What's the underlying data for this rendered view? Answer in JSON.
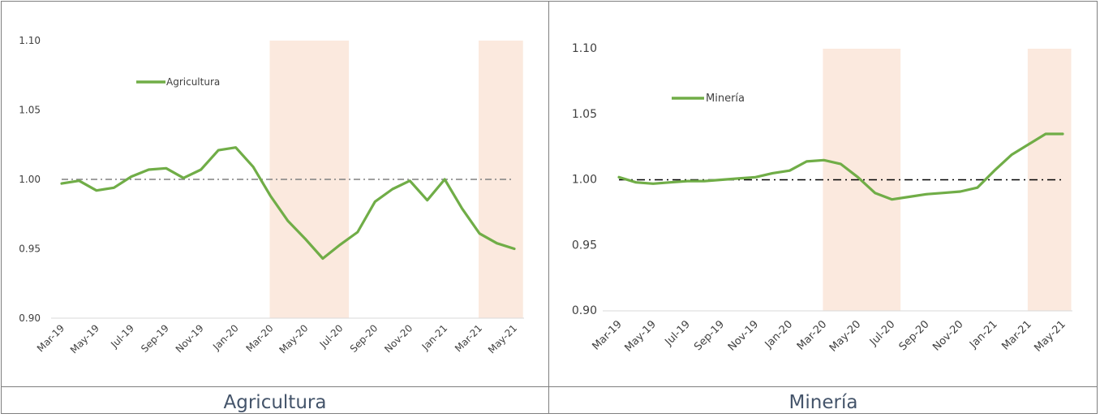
{
  "captions": {
    "left": "Agricultura",
    "right": "Minería"
  },
  "chart_data": [
    {
      "type": "line",
      "x": [
        "Mar-19",
        "Apr-19",
        "May-19",
        "Jun-19",
        "Jul-19",
        "Aug-19",
        "Sep-19",
        "Oct-19",
        "Nov-19",
        "Dec-19",
        "Jan-20",
        "Feb-20",
        "Mar-20",
        "Apr-20",
        "May-20",
        "Jun-20",
        "Jul-20",
        "Aug-20",
        "Sep-20",
        "Oct-20",
        "Nov-20",
        "Dec-20",
        "Jan-21",
        "Feb-21",
        "Mar-21",
        "Apr-21",
        "May-21"
      ],
      "tick_labels": [
        "Mar-19",
        "May-19",
        "Jul-19",
        "Sep-19",
        "Nov-19",
        "Jan-20",
        "Mar-20",
        "May-20",
        "Jul-20",
        "Sep-20",
        "Nov-20",
        "Jan-21",
        "Mar-21",
        "May-21"
      ],
      "series": [
        {
          "name": "Agricultura",
          "color": "#70ad47",
          "values": [
            0.997,
            0.999,
            0.992,
            0.994,
            1.002,
            1.007,
            1.008,
            1.001,
            1.007,
            1.021,
            1.023,
            1.009,
            0.988,
            0.97,
            0.957,
            0.943,
            0.953,
            0.962,
            0.984,
            0.993,
            0.999,
            0.985,
            1.0,
            0.979,
            0.961,
            0.954,
            0.95
          ]
        }
      ],
      "baseline": {
        "value": 1.0,
        "color": "#808080",
        "style": "dash-dot"
      },
      "shaded_periods": [
        {
          "from": "Mar-20",
          "to": "Jul-20"
        },
        {
          "from": "Mar-21",
          "to": "May-21"
        }
      ],
      "shade_color": "#fbe9de",
      "y_ticks": [
        "0.90",
        "0.95",
        "1.00",
        "1.05",
        "1.10"
      ],
      "ylim": [
        0.9,
        1.1
      ],
      "legend": "top-left"
    },
    {
      "type": "line",
      "x": [
        "Mar-19",
        "Apr-19",
        "May-19",
        "Jun-19",
        "Jul-19",
        "Aug-19",
        "Sep-19",
        "Oct-19",
        "Nov-19",
        "Dec-19",
        "Jan-20",
        "Feb-20",
        "Mar-20",
        "Apr-20",
        "May-20",
        "Jun-20",
        "Jul-20",
        "Aug-20",
        "Sep-20",
        "Oct-20",
        "Nov-20",
        "Dec-20",
        "Jan-21",
        "Feb-21",
        "Mar-21",
        "Apr-21",
        "May-21"
      ],
      "tick_labels": [
        "Mar-19",
        "May-19",
        "Jul-19",
        "Sep-19",
        "Nov-19",
        "Jan-20",
        "Mar-20",
        "May-20",
        "Jul-20",
        "Sep-20",
        "Nov-20",
        "Jan-21",
        "Mar-21",
        "May-21"
      ],
      "series": [
        {
          "name": "Minería",
          "color": "#70ad47",
          "values": [
            1.002,
            0.998,
            0.997,
            0.998,
            0.999,
            0.999,
            1.0,
            1.001,
            1.002,
            1.005,
            1.007,
            1.014,
            1.015,
            1.012,
            1.002,
            0.99,
            0.985,
            0.987,
            0.989,
            0.99,
            0.991,
            0.994,
            1.007,
            1.019,
            1.027,
            1.035,
            1.035
          ]
        }
      ],
      "baseline": {
        "value": 1.0,
        "color": "#000000",
        "style": "dash-dot"
      },
      "shaded_periods": [
        {
          "from": "Mar-20",
          "to": "Jul-20"
        },
        {
          "from": "Mar-21",
          "to": "May-21"
        }
      ],
      "shade_color": "#fbe9de",
      "y_ticks": [
        "0.90",
        "0.95",
        "1.00",
        "1.05",
        "1.10"
      ],
      "ylim": [
        0.9,
        1.1
      ],
      "legend": "top-left"
    }
  ]
}
